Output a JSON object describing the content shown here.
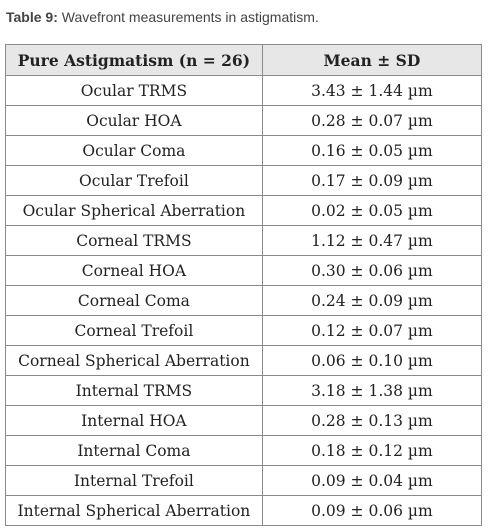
{
  "caption": {
    "label": "Table 9:",
    "text": "Wavefront measurements in astigmatism."
  },
  "table": {
    "headers": [
      "Pure Astigmatism (n = 26)",
      "Mean ± SD"
    ],
    "rows": [
      [
        "Ocular TRMS",
        "3.43 ± 1.44 µm"
      ],
      [
        "Ocular HOA",
        "0.28 ± 0.07 µm"
      ],
      [
        "Ocular Coma",
        "0.16 ± 0.05 µm"
      ],
      [
        "Ocular Trefoil",
        "0.17 ± 0.09 µm"
      ],
      [
        "Ocular Spherical Aberration",
        "0.02 ± 0.05 µm"
      ],
      [
        "Corneal TRMS",
        "1.12 ± 0.47 µm"
      ],
      [
        "Corneal HOA",
        "0.30 ± 0.06 µm"
      ],
      [
        "Corneal Coma",
        "0.24 ± 0.09 µm"
      ],
      [
        "Corneal Trefoil",
        "0.12 ± 0.07 µm"
      ],
      [
        "Corneal Spherical Aberration",
        "0.06 ± 0.10 µm"
      ],
      [
        "Internal TRMS",
        "3.18 ± 1.38 µm"
      ],
      [
        "Internal HOA",
        "0.28 ± 0.13 µm"
      ],
      [
        "Internal Coma",
        "0.18 ± 0.12 µm"
      ],
      [
        "Internal Trefoil",
        "0.09 ± 0.04 µm"
      ],
      [
        "Internal Spherical Aberration",
        "0.09 ± 0.06 µm"
      ]
    ]
  }
}
